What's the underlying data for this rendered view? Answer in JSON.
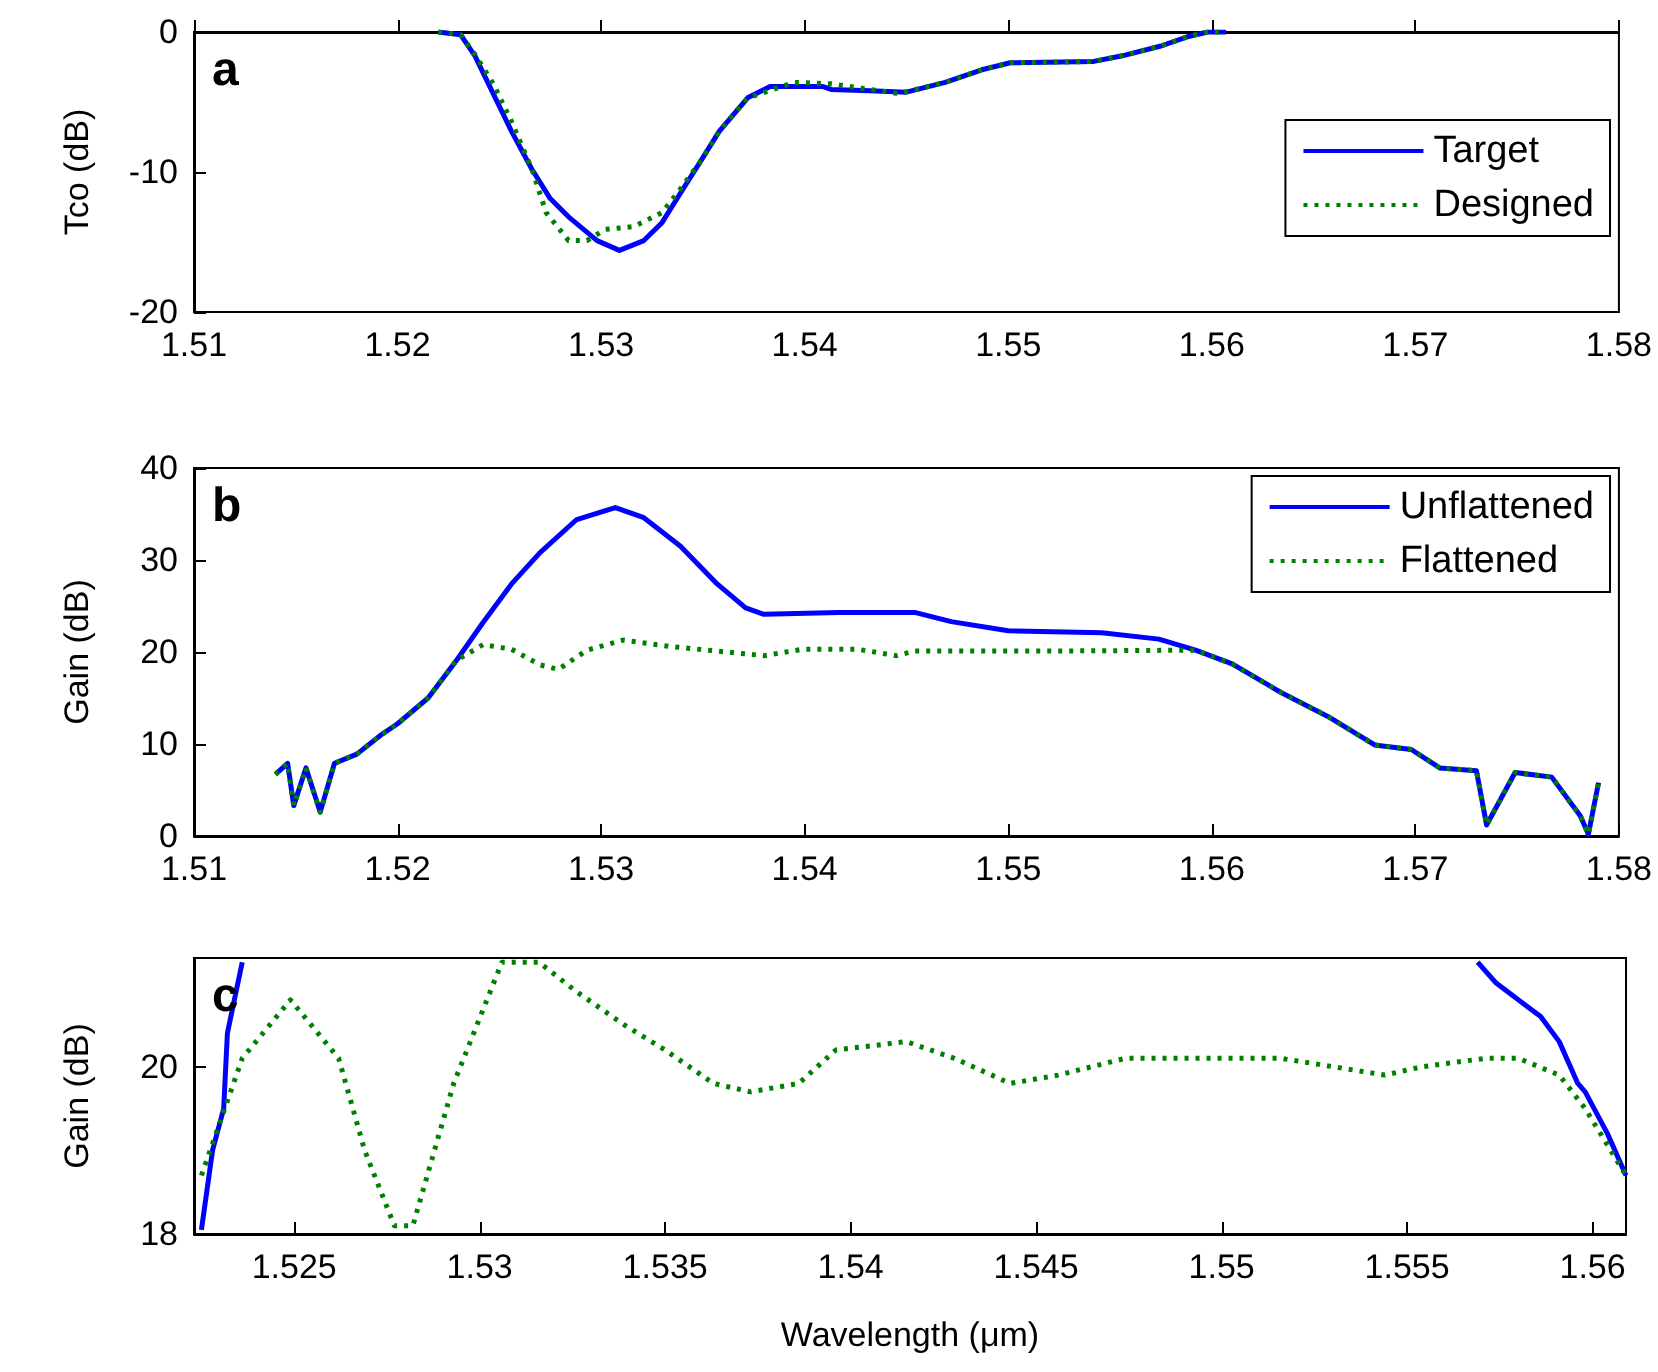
{
  "chart_data": [
    {
      "type": "line",
      "title": "a",
      "ylabel": "Tco (dB)",
      "xlim": [
        1.51,
        1.58
      ],
      "xticks": [
        1.51,
        1.52,
        1.53,
        1.54,
        1.55,
        1.56,
        1.57,
        1.58
      ],
      "ylim": [
        -20,
        0
      ],
      "yticks": [
        -20,
        -10,
        0
      ],
      "grid": false,
      "legend": "bottom right",
      "marker": "none",
      "series": [
        {
          "name": "Target",
          "color": "#0000ff",
          "line_style": "solid",
          "x": [
            1.522,
            1.5231,
            1.5238,
            1.5247,
            1.5256,
            1.5266,
            1.5275,
            1.5284,
            1.5298,
            1.5309,
            1.5321,
            1.533,
            1.5339,
            1.5349,
            1.5358,
            1.5372,
            1.5383,
            1.5409,
            1.5413,
            1.5432,
            1.545,
            1.5469,
            1.5487,
            1.5501,
            1.5542,
            1.5556,
            1.5575,
            1.5589,
            1.5598,
            1.5607
          ],
          "values": [
            0,
            -0.2,
            -1.7,
            -4.4,
            -7.1,
            -9.8,
            -11.9,
            -13.2,
            -14.9,
            -15.6,
            -14.9,
            -13.6,
            -11.5,
            -9.2,
            -7.1,
            -4.7,
            -3.9,
            -3.9,
            -4.1,
            -4.2,
            -4.3,
            -3.6,
            -2.7,
            -2.2,
            -2.1,
            -1.7,
            -1,
            -0.3,
            0,
            0
          ]
        },
        {
          "name": "Designed",
          "color": "#008000",
          "line_style": "dotted",
          "x": [
            1.522,
            1.5231,
            1.5238,
            1.5247,
            1.5256,
            1.5266,
            1.5273,
            1.5284,
            1.5293,
            1.5302,
            1.5316,
            1.533,
            1.5339,
            1.5349,
            1.5358,
            1.5372,
            1.5395,
            1.5413,
            1.5432,
            1.5446,
            1.5469,
            1.5487,
            1.5501,
            1.5542,
            1.5556,
            1.5575,
            1.5589,
            1.5598,
            1.5607
          ],
          "values": [
            0,
            -0.2,
            -1.6,
            -3.7,
            -6.4,
            -9.8,
            -12.9,
            -14.9,
            -14.9,
            -14.1,
            -13.9,
            -12.9,
            -11.2,
            -9.2,
            -7.1,
            -4.7,
            -3.6,
            -3.7,
            -4.1,
            -4.4,
            -3.6,
            -2.7,
            -2.2,
            -2.1,
            -1.7,
            -1,
            -0.3,
            0,
            0
          ]
        }
      ]
    },
    {
      "type": "line",
      "title": "b",
      "ylabel": "Gain (dB)",
      "xlim": [
        1.51,
        1.58
      ],
      "xticks": [
        1.51,
        1.52,
        1.53,
        1.54,
        1.55,
        1.56,
        1.57,
        1.58
      ],
      "ylim": [
        0,
        40
      ],
      "yticks": [
        0,
        10,
        20,
        30,
        40
      ],
      "grid": false,
      "legend": "top right",
      "marker": "none",
      "series": [
        {
          "name": "Unflattened",
          "color": "#0000ff",
          "line_style": "solid",
          "x": [
            1.514,
            1.5146,
            1.5149,
            1.5155,
            1.5162,
            1.5169,
            1.518,
            1.5192,
            1.52,
            1.5215,
            1.5229,
            1.5242,
            1.5256,
            1.527,
            1.5288,
            1.5307,
            1.5321,
            1.5339,
            1.5357,
            1.5371,
            1.538,
            1.5417,
            1.5454,
            1.5472,
            1.55,
            1.5546,
            1.5574,
            1.5592,
            1.561,
            1.5634,
            1.5657,
            1.568,
            1.5698,
            1.5712,
            1.573,
            1.5735,
            1.5749,
            1.5767,
            1.5781,
            1.5785,
            1.579
          ],
          "values": [
            6.7,
            7.9,
            3.3,
            7.4,
            2.6,
            7.9,
            8.9,
            11,
            12.2,
            15,
            19.1,
            23.2,
            27.4,
            30.8,
            34.4,
            35.7,
            34.6,
            31.5,
            27.4,
            24.8,
            24.1,
            24.3,
            24.3,
            23.3,
            22.3,
            22.1,
            21.4,
            20.2,
            18.7,
            15.6,
            13,
            9.9,
            9.4,
            7.4,
            7.1,
            1.2,
            6.9,
            6.4,
            2.2,
            0.2,
            5.8
          ]
        },
        {
          "name": "Flattened",
          "color": "#008000",
          "line_style": "dotted",
          "x": [
            1.514,
            1.5146,
            1.5149,
            1.5155,
            1.5162,
            1.5169,
            1.518,
            1.5192,
            1.52,
            1.5215,
            1.5229,
            1.5242,
            1.5256,
            1.527,
            1.5279,
            1.5293,
            1.5311,
            1.5334,
            1.5357,
            1.538,
            1.5399,
            1.5426,
            1.5445,
            1.5454,
            1.5518,
            1.5592,
            1.561,
            1.5634,
            1.5657,
            1.568,
            1.5698,
            1.5712,
            1.573,
            1.5735,
            1.5749,
            1.5767,
            1.5781,
            1.5785,
            1.579
          ],
          "values": [
            6.7,
            7.9,
            3.3,
            7.4,
            2.6,
            7.9,
            8.9,
            11,
            12.2,
            15,
            19.1,
            20.8,
            20.3,
            18.6,
            18.1,
            20.2,
            21.3,
            20.6,
            20.1,
            19.6,
            20.3,
            20.3,
            19.6,
            20.1,
            20.1,
            20.2,
            18.7,
            15.6,
            13,
            9.9,
            9.4,
            7.4,
            7.1,
            1.2,
            6.9,
            6.4,
            2.2,
            0.2,
            5.8
          ]
        }
      ]
    },
    {
      "type": "line",
      "title": "c",
      "ylabel": "Gain (dB)",
      "xlabel": "Wavelength (μm)",
      "xlim": [
        1.5223,
        1.5609
      ],
      "xticks": [
        1.525,
        1.53,
        1.535,
        1.54,
        1.545,
        1.55,
        1.555,
        1.56
      ],
      "ylim": [
        18,
        21.3
      ],
      "yticks": [
        18,
        20
      ],
      "grid": false,
      "legend": false,
      "marker": "none",
      "series": [
        {
          "color": "#0000ff",
          "line_style": "solid",
          "x": [
            1.5225,
            1.5228,
            1.5231,
            1.5232,
            1.5236,
            1.54,
            1.5569,
            1.5574,
            1.5583,
            1.5586,
            1.5591,
            1.5596,
            1.5598,
            1.5604,
            1.5609
          ],
          "values": [
            18.05,
            19,
            19.5,
            20.4,
            21.25,
            null,
            21.25,
            21,
            20.7,
            20.6,
            20.3,
            19.8,
            19.7,
            19.2,
            18.7
          ]
        },
        {
          "color": "#008000",
          "line_style": "dotted",
          "x": [
            1.5225,
            1.5236,
            1.5249,
            1.5262,
            1.5269,
            1.5277,
            1.5282,
            1.5293,
            1.5306,
            1.5316,
            1.5326,
            1.5339,
            1.535,
            1.5363,
            1.5373,
            1.5386,
            1.5396,
            1.5415,
            1.5428,
            1.5443,
            1.5456,
            1.5474,
            1.549,
            1.5516,
            1.5544,
            1.5554,
            1.5571,
            1.558,
            1.5591,
            1.5598,
            1.5609
          ],
          "values": [
            18.7,
            20.1,
            20.8,
            20.1,
            19,
            18.1,
            18.1,
            19.8,
            21.25,
            21.25,
            20.9,
            20.5,
            20.2,
            19.8,
            19.7,
            19.8,
            20.2,
            20.3,
            20.1,
            19.8,
            19.9,
            20.1,
            20.1,
            20.1,
            19.9,
            20,
            20.1,
            20.1,
            19.9,
            19.5,
            18.7
          ]
        }
      ]
    }
  ]
}
